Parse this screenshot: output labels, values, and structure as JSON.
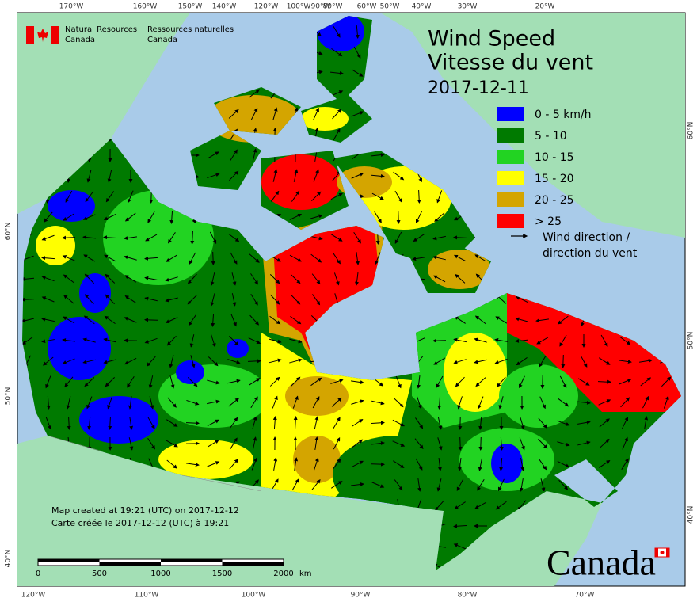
{
  "header": {
    "agency_en": [
      "Natural Resources",
      "Canada"
    ],
    "agency_fr": [
      "Ressources naturelles",
      "Canada"
    ]
  },
  "title": [
    "Wind Speed",
    "Vitesse du vent"
  ],
  "date": "2017-12-11",
  "legend": {
    "items": [
      {
        "label": "0 - 5 km/h",
        "color": "#0000ff"
      },
      {
        "label": "5 - 10",
        "color": "#007a00"
      },
      {
        "label": "10 - 15",
        "color": "#22d322"
      },
      {
        "label": "15 - 20",
        "color": "#ffff00"
      },
      {
        "label": "20 - 25",
        "color": "#d4a500"
      },
      {
        "label": "> 25",
        "color": "#ff0000"
      }
    ],
    "arrow_label": [
      "Wind direction /",
      "direction du vent"
    ]
  },
  "graticule": {
    "top": [
      "170°W",
      "160°W",
      "150°W",
      "140°W",
      "120°W",
      "100°W",
      "90°W",
      "80°W",
      "60°W",
      "50°W",
      "40°W",
      "30°W",
      "20°W"
    ],
    "bottom": [
      "120°W",
      "110°W",
      "100°W",
      "90°W",
      "80°W",
      "70°W"
    ],
    "left": [
      "60°N",
      "50°N",
      "40°N"
    ],
    "right": [
      "60°N",
      "50°N",
      "40°N"
    ]
  },
  "credits": [
    "Map created at 19:21 (UTC) on 2017-12-12",
    "Carte créée le 2017-12-12 (UTC) à 19:21"
  ],
  "scale": {
    "ticks": [
      0,
      500,
      1000,
      1500,
      2000
    ],
    "unit": "km"
  },
  "wordmark": "Canada"
}
